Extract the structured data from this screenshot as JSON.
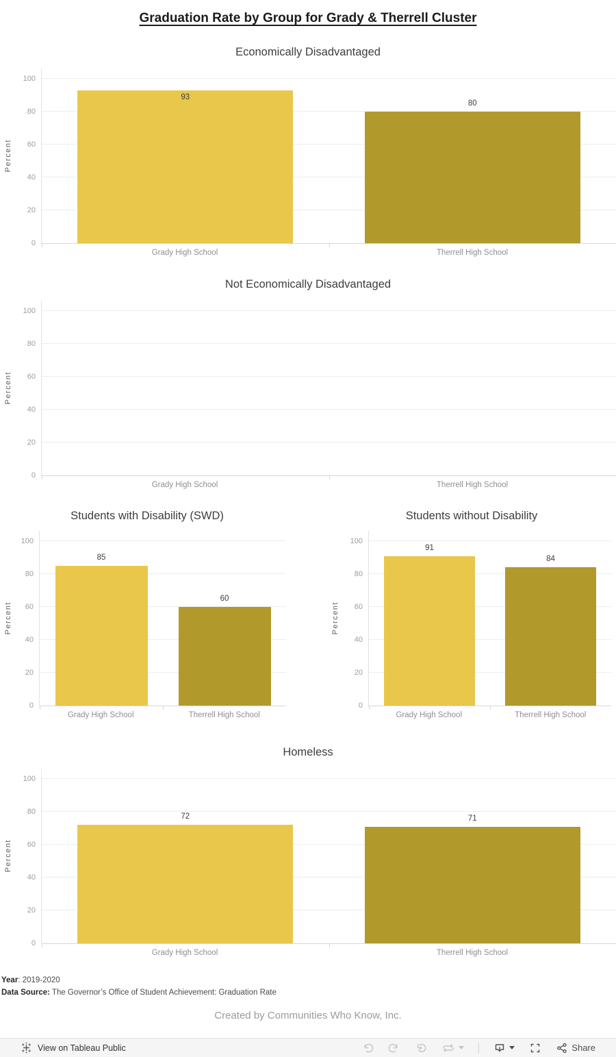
{
  "page_title": "Graduation Rate by Group for Grady & Therrell Cluster",
  "colors": {
    "grady_bar": "#E9C74B",
    "therrell_bar": "#B2992C",
    "gridline": "#ededed",
    "axis_text": "#9c9c9c"
  },
  "chart_data": [
    {
      "type": "bar",
      "title": "Economically Disadvantaged",
      "categories": [
        "Grady High School",
        "Therrell High School"
      ],
      "values": [
        93,
        80
      ],
      "bar_colors": [
        "#E9C74B",
        "#B2992C"
      ],
      "label_inside": [
        true,
        false
      ],
      "xlabel": "",
      "ylabel": "Percent",
      "ylim": [
        0,
        100
      ],
      "yticks": [
        0,
        20,
        40,
        60,
        80,
        100
      ],
      "grid": true,
      "legend": "none"
    },
    {
      "type": "bar",
      "title": "Not Economically Disadvantaged",
      "categories": [
        "Grady High School",
        "Therrell High School"
      ],
      "values": [
        null,
        null
      ],
      "bar_colors": [
        "#E9C74B",
        "#B2992C"
      ],
      "label_inside": [
        false,
        false
      ],
      "xlabel": "",
      "ylabel": "Percent",
      "ylim": [
        0,
        100
      ],
      "yticks": [
        0,
        20,
        40,
        60,
        80,
        100
      ],
      "grid": true,
      "legend": "none"
    },
    {
      "type": "bar",
      "title": "Students with Disability (SWD)",
      "categories": [
        "Grady High School",
        "Therrell High School"
      ],
      "values": [
        85,
        60
      ],
      "bar_colors": [
        "#E9C74B",
        "#B2992C"
      ],
      "label_inside": [
        false,
        false
      ],
      "xlabel": "",
      "ylabel": "Percent",
      "ylim": [
        0,
        100
      ],
      "yticks": [
        0,
        20,
        40,
        60,
        80,
        100
      ],
      "grid": true,
      "legend": "none"
    },
    {
      "type": "bar",
      "title": "Students without Disability",
      "categories": [
        "Grady High School",
        "Therrell High School"
      ],
      "values": [
        91,
        84
      ],
      "bar_colors": [
        "#E9C74B",
        "#B2992C"
      ],
      "label_inside": [
        false,
        false
      ],
      "xlabel": "",
      "ylabel": "Percent",
      "ylim": [
        0,
        100
      ],
      "yticks": [
        0,
        20,
        40,
        60,
        80,
        100
      ],
      "grid": true,
      "legend": "none"
    },
    {
      "type": "bar",
      "title": "Homeless",
      "categories": [
        "Grady High School",
        "Therrell High School"
      ],
      "values": [
        72,
        71
      ],
      "bar_colors": [
        "#E9C74B",
        "#B2992C"
      ],
      "label_inside": [
        false,
        false
      ],
      "xlabel": "",
      "ylabel": "Percent",
      "ylim": [
        0,
        100
      ],
      "yticks": [
        0,
        20,
        40,
        60,
        80,
        100
      ],
      "grid": true,
      "legend": "none"
    }
  ],
  "footer": {
    "year_label": "Year",
    "year_value": ": 2019-2020",
    "source_label": "Data Source:",
    "source_value": " The Governor’s Office of Student Achievement: Graduation Rate",
    "credit": "Created by Communities Who Know, Inc."
  },
  "toolbar": {
    "view_label": "View on Tableau Public",
    "share_label": "Share"
  }
}
